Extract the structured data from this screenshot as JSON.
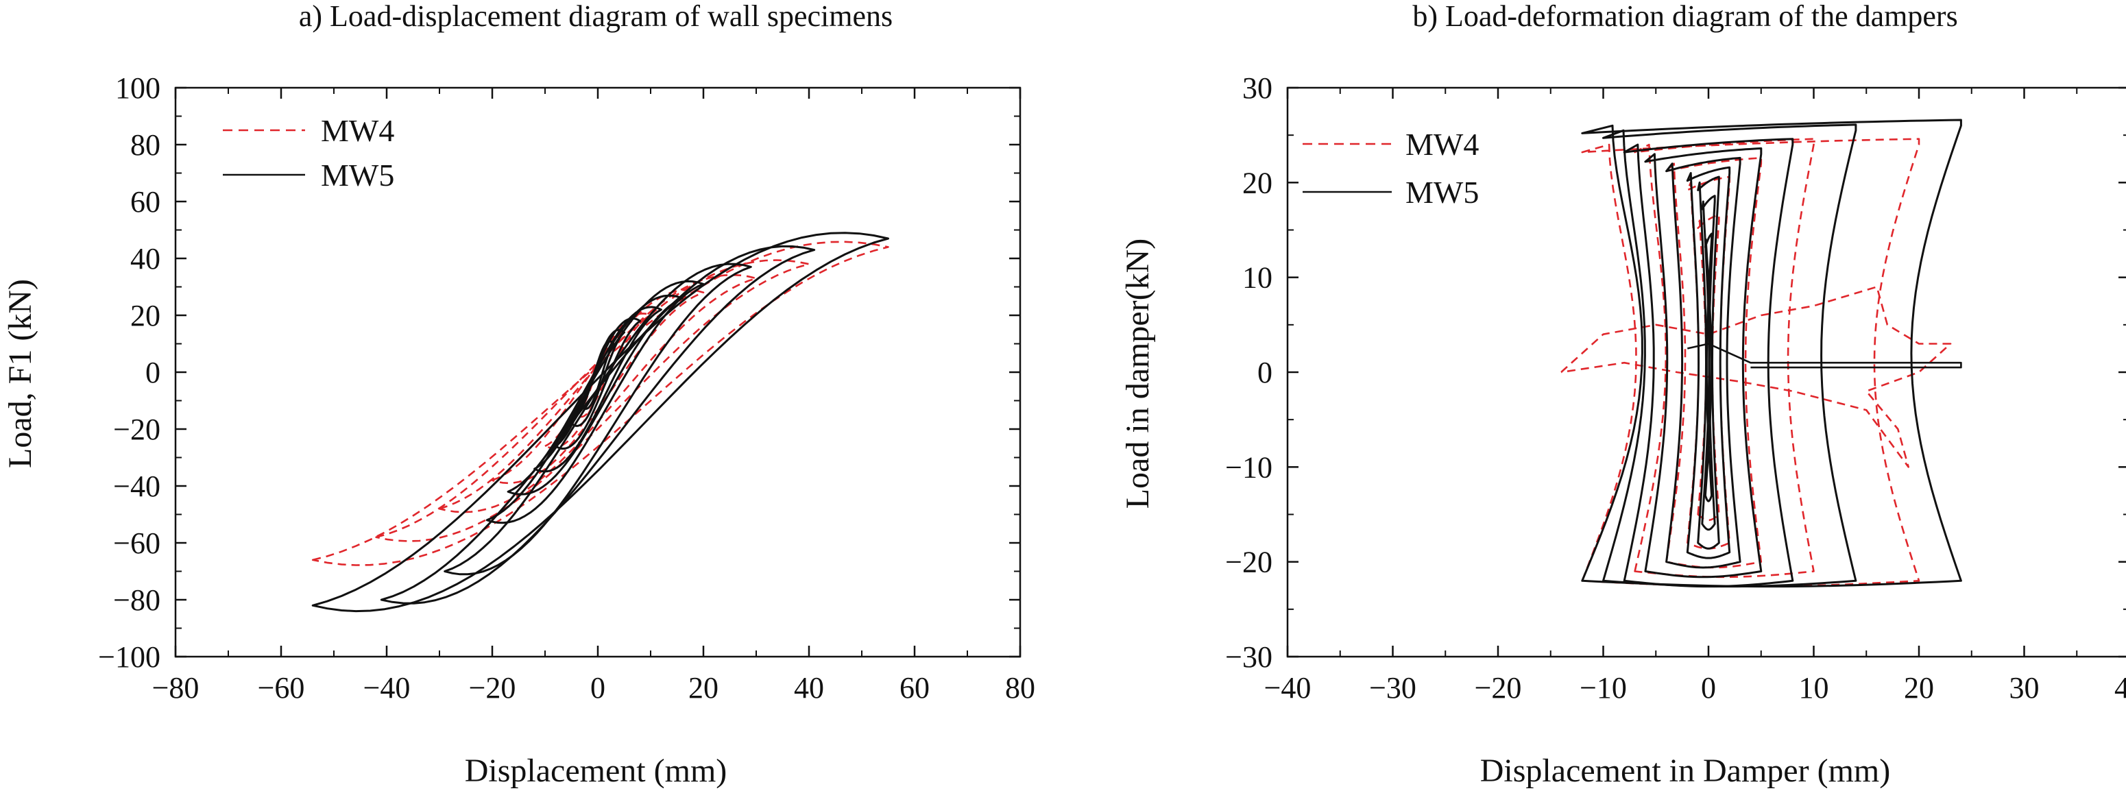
{
  "chart_data": [
    {
      "id": "a",
      "type": "line",
      "title": "a) Load-displacement diagram of wall specimens",
      "xlabel": "Displacement (mm)",
      "ylabel": "Load, F1 (kN)",
      "xlim": [
        -80,
        80
      ],
      "ylim": [
        -100,
        100
      ],
      "xticks": [
        -80,
        -60,
        -40,
        -20,
        0,
        20,
        40,
        60,
        80
      ],
      "yticks": [
        -100,
        -80,
        -60,
        -40,
        -20,
        0,
        20,
        40,
        60,
        80,
        100
      ],
      "xtick_labels": [
        "−80",
        "−60",
        "−40",
        "−20",
        "0",
        "20",
        "40",
        "60",
        "80"
      ],
      "ytick_labels": [
        "−100",
        "−80",
        "−60",
        "−40",
        "−20",
        "0",
        "20",
        "40",
        "60",
        "80",
        "100"
      ],
      "grid": false,
      "legend_position": "top-left",
      "series": [
        {
          "name": "MW4",
          "color": "#e0262b",
          "style": "dashed",
          "loops": [
            {
              "xp": 5,
              "yp": 14,
              "xn": -4,
              "yn": -15,
              "w": 5
            },
            {
              "xp": 10,
              "yp": 20,
              "xn": -10,
              "yn": -26,
              "w": 6
            },
            {
              "xp": 20,
              "yp": 28,
              "xn": -20,
              "yn": -38,
              "w": 9
            },
            {
              "xp": 30,
              "yp": 33,
              "xn": -30,
              "yn": -48,
              "w": 11
            },
            {
              "xp": 40,
              "yp": 38,
              "xn": -42,
              "yn": -58,
              "w": 13
            },
            {
              "xp": 55,
              "yp": 44,
              "xn": -54,
              "yn": -66,
              "w": 16
            }
          ]
        },
        {
          "name": "MW5",
          "color": "#111111",
          "style": "solid",
          "loops": [
            {
              "xp": 3,
              "yp": 10,
              "xn": -3,
              "yn": -12,
              "w": 5
            },
            {
              "xp": 5,
              "yp": 14,
              "xn": -5,
              "yn": -18,
              "w": 6
            },
            {
              "xp": 8,
              "yp": 18,
              "xn": -8,
              "yn": -26,
              "w": 7
            },
            {
              "xp": 12,
              "yp": 22,
              "xn": -12,
              "yn": -34,
              "w": 8
            },
            {
              "xp": 16,
              "yp": 26,
              "xn": -17,
              "yn": -42,
              "w": 9
            },
            {
              "xp": 20,
              "yp": 31,
              "xn": -21,
              "yn": -52,
              "w": 10
            },
            {
              "xp": 29,
              "yp": 37,
              "xn": -29,
              "yn": -70,
              "w": 12
            },
            {
              "xp": 41,
              "yp": 43,
              "xn": -41,
              "yn": -80,
              "w": 14
            },
            {
              "xp": 55,
              "yp": 47,
              "xn": -54,
              "yn": -82,
              "w": 18
            }
          ]
        }
      ]
    },
    {
      "id": "b",
      "type": "line",
      "title": "b) Load-deformation diagram of the dampers",
      "xlabel": "Displacement in Damper (mm)",
      "ylabel": "Load in damper(kN)",
      "xlim": [
        -40,
        40
      ],
      "ylim": [
        -30,
        30
      ],
      "xticks": [
        -40,
        -30,
        -20,
        -10,
        0,
        10,
        20,
        30,
        40
      ],
      "yticks": [
        -30,
        -20,
        -10,
        0,
        10,
        20,
        30
      ],
      "xtick_labels": [
        "−40",
        "−30",
        "−20",
        "−10",
        "0",
        "10",
        "20",
        "30",
        "40"
      ],
      "ytick_labels": [
        "−30",
        "−20",
        "−10",
        "0",
        "10",
        "20",
        "30"
      ],
      "grid": false,
      "legend_position": "top-left",
      "series": [
        {
          "name": "MW4",
          "color": "#e0262b",
          "style": "dashed",
          "loops": [
            {
              "xp": 1,
              "yp": 16,
              "xn": -1,
              "yn": -15
            },
            {
              "xp": 2,
              "yp": 20,
              "xn": -2,
              "yn": -18
            },
            {
              "xp": 5,
              "yp": 22,
              "xn": -4,
              "yn": -20
            },
            {
              "xp": 10,
              "yp": 24,
              "xn": -7,
              "yn": -21
            },
            {
              "xp": 20,
              "yp": 24,
              "xn": -12,
              "yn": -22
            }
          ],
          "residual_points": [
            [
              -14,
              0
            ],
            [
              -10,
              4
            ],
            [
              -5,
              5
            ],
            [
              0,
              4
            ],
            [
              5,
              6
            ],
            [
              10,
              7
            ],
            [
              16,
              9
            ],
            [
              17,
              5
            ],
            [
              20,
              3
            ],
            [
              23,
              3
            ],
            [
              20,
              0
            ],
            [
              15,
              -2
            ],
            [
              18,
              -6
            ],
            [
              19,
              -10
            ],
            [
              15,
              -4
            ],
            [
              8,
              -2
            ],
            [
              3,
              -1
            ],
            [
              -3,
              0
            ],
            [
              -8,
              1
            ],
            [
              -14,
              0
            ]
          ]
        },
        {
          "name": "MW5",
          "color": "#111111",
          "style": "solid",
          "loops": [
            {
              "xp": 0.3,
              "yp": 14,
              "xn": -0.3,
              "yn": -13
            },
            {
              "xp": 0.6,
              "yp": 18,
              "xn": -0.6,
              "yn": -16
            },
            {
              "xp": 1,
              "yp": 20,
              "xn": -1,
              "yn": -18
            },
            {
              "xp": 2,
              "yp": 21,
              "xn": -2,
              "yn": -19
            },
            {
              "xp": 3,
              "yp": 22,
              "xn": -4,
              "yn": -20
            },
            {
              "xp": 5,
              "yp": 23,
              "xn": -6,
              "yn": -21
            },
            {
              "xp": 8,
              "yp": 24,
              "xn": -8,
              "yn": -22
            },
            {
              "xp": 14,
              "yp": 25.5,
              "xn": -10,
              "yn": -22
            },
            {
              "xp": 24,
              "yp": 26,
              "xn": -12,
              "yn": -22
            }
          ],
          "residual_points": [
            [
              -2,
              2.5
            ],
            [
              0,
              3
            ],
            [
              4,
              1
            ],
            [
              10,
              1
            ],
            [
              18,
              1
            ],
            [
              24,
              1
            ],
            [
              24,
              0.5
            ],
            [
              4,
              0.5
            ]
          ]
        }
      ]
    }
  ]
}
